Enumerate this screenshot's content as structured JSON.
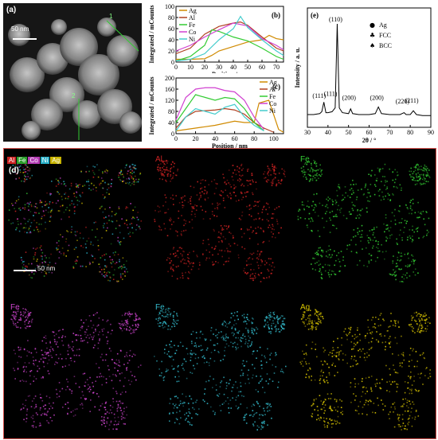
{
  "panel_a": {
    "label": "(a)",
    "scale_text": "50 nm",
    "line_labels": [
      "1",
      "2"
    ]
  },
  "chart_data": [
    {
      "type": "line",
      "panel": "(b)",
      "xlabel": "Position / nm",
      "ylabel": "Integrated / mCounts",
      "xlim": [
        0,
        75
      ],
      "ylim": [
        0,
        100
      ],
      "xticks": [
        0,
        10,
        20,
        30,
        40,
        50,
        60,
        70
      ],
      "yticks": [
        0,
        20,
        40,
        60,
        80,
        100
      ],
      "legend_placement": "top-left",
      "series": [
        {
          "name": "Ag",
          "color": "#d08a00",
          "x": [
            0,
            10,
            20,
            25,
            30,
            40,
            50,
            60,
            65,
            70,
            75
          ],
          "y": [
            5,
            5,
            6,
            12,
            20,
            28,
            36,
            40,
            48,
            42,
            40
          ]
        },
        {
          "name": "Al",
          "color": "#b04020",
          "x": [
            0,
            10,
            20,
            30,
            40,
            45,
            50,
            60,
            70,
            75
          ],
          "y": [
            15,
            25,
            50,
            64,
            70,
            72,
            66,
            45,
            25,
            20
          ]
        },
        {
          "name": "Fe",
          "color": "#33cc33",
          "x": [
            0,
            10,
            20,
            25,
            30,
            40,
            50,
            60,
            70,
            75
          ],
          "y": [
            2,
            10,
            30,
            58,
            55,
            45,
            38,
            25,
            10,
            5
          ]
        },
        {
          "name": "Co",
          "color": "#d040d0",
          "x": [
            0,
            10,
            20,
            30,
            40,
            50,
            60,
            70,
            75
          ],
          "y": [
            20,
            30,
            45,
            58,
            70,
            65,
            42,
            30,
            22
          ]
        },
        {
          "name": "Ni",
          "color": "#44cccc",
          "x": [
            0,
            10,
            20,
            30,
            40,
            45,
            50,
            60,
            70,
            75
          ],
          "y": [
            2,
            5,
            15,
            40,
            60,
            82,
            62,
            40,
            20,
            12
          ]
        }
      ]
    },
    {
      "type": "line",
      "panel": "(c)",
      "xlabel": "Position / nm",
      "ylabel": "Integrated / mCounts",
      "xlim": [
        0,
        110
      ],
      "ylim": [
        0,
        200
      ],
      "xticks": [
        0,
        20,
        40,
        60,
        80,
        100
      ],
      "yticks": [
        0,
        40,
        80,
        120,
        160,
        200
      ],
      "legend_placement": "top-right",
      "series": [
        {
          "name": "Ag",
          "color": "#d08a00",
          "x": [
            0,
            20,
            40,
            60,
            70,
            80,
            85,
            95,
            105,
            110
          ],
          "y": [
            10,
            20,
            30,
            45,
            40,
            40,
            110,
            120,
            15,
            5
          ]
        },
        {
          "name": "Al",
          "color": "#b04020",
          "x": [
            0,
            10,
            20,
            40,
            50,
            60,
            70,
            80,
            90,
            100
          ],
          "y": [
            20,
            60,
            80,
            85,
            90,
            85,
            70,
            40,
            20,
            5
          ]
        },
        {
          "name": "Fe",
          "color": "#33cc33",
          "x": [
            0,
            10,
            20,
            30,
            40,
            50,
            60,
            70,
            80,
            90
          ],
          "y": [
            40,
            90,
            140,
            130,
            120,
            130,
            125,
            90,
            40,
            10
          ]
        },
        {
          "name": "Co",
          "color": "#d040d0",
          "x": [
            0,
            10,
            20,
            30,
            40,
            50,
            60,
            70,
            80,
            90
          ],
          "y": [
            50,
            130,
            160,
            165,
            165,
            155,
            150,
            120,
            60,
            15
          ]
        },
        {
          "name": "Ni",
          "color": "#44cccc",
          "x": [
            0,
            10,
            20,
            30,
            40,
            50,
            60,
            70,
            80,
            90
          ],
          "y": [
            10,
            60,
            90,
            80,
            70,
            95,
            105,
            60,
            30,
            10
          ]
        }
      ]
    },
    {
      "type": "line",
      "panel": "(e)",
      "xlabel": "2θ / °",
      "ylabel": "Intensity / a. u.",
      "xlim": [
        30,
        90
      ],
      "xticks": [
        30,
        40,
        50,
        60,
        70,
        80,
        90
      ],
      "series": [
        {
          "name": "",
          "color": "#000000",
          "x": [
            30,
            33,
            36,
            37,
            38,
            39,
            40,
            42,
            43.5,
            44.5,
            45.5,
            47,
            50,
            51,
            52,
            55,
            60,
            63,
            64.5,
            66,
            70,
            75,
            77,
            78,
            80,
            81.5,
            83,
            86,
            90
          ],
          "y": [
            5,
            5,
            6,
            8,
            18,
            7,
            7,
            8,
            12,
            100,
            12,
            7,
            6,
            11,
            6,
            5,
            5,
            6,
            13,
            6,
            5,
            5,
            7,
            5,
            5,
            9,
            5,
            4,
            4
          ]
        }
      ],
      "annotations": [
        "(110)",
        "(111)",
        "(111)",
        "(200)",
        "(200)",
        "(220)",
        "(211)"
      ],
      "legend": [
        {
          "symbol": "●",
          "label": "Ag"
        },
        {
          "symbol": "♣",
          "label": "FCC"
        },
        {
          "symbol": "♠",
          "label": "BCC"
        }
      ]
    }
  ],
  "panel_d": {
    "label": "(d)",
    "scale_text": "50 nm",
    "legend_chips": [
      {
        "t": "Al",
        "c": "#cc2222"
      },
      {
        "t": "Fe",
        "c": "#2a9d2a"
      },
      {
        "t": "Co",
        "c": "#b43cb4"
      },
      {
        "t": "Ni",
        "c": "#2ab0c8"
      },
      {
        "t": "Ag",
        "c": "#c8b400"
      }
    ],
    "maps": [
      {
        "title": "Al",
        "color": "#cc2222"
      },
      {
        "title": "Fe",
        "color": "#33cc33"
      },
      {
        "title": "Fe",
        "color": "#cc44cc"
      },
      {
        "title": "Fe",
        "color": "#33bbcc"
      },
      {
        "title": "Ag",
        "color": "#d8c400"
      }
    ]
  }
}
